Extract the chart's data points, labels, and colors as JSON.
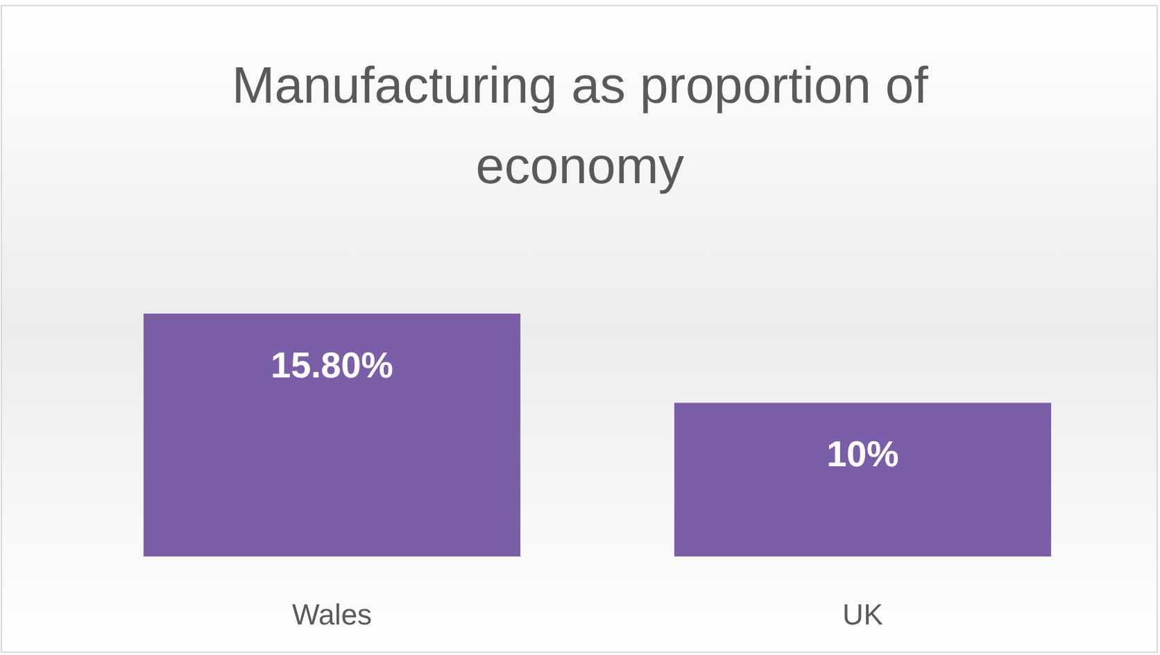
{
  "chart_data": {
    "type": "bar",
    "title": "Manufacturing as proportion of economy",
    "categories": [
      "Wales",
      "UK"
    ],
    "values": [
      15.8,
      10
    ],
    "value_labels": [
      "15.80%",
      "10%"
    ],
    "color": "#7a5fa8"
  }
}
